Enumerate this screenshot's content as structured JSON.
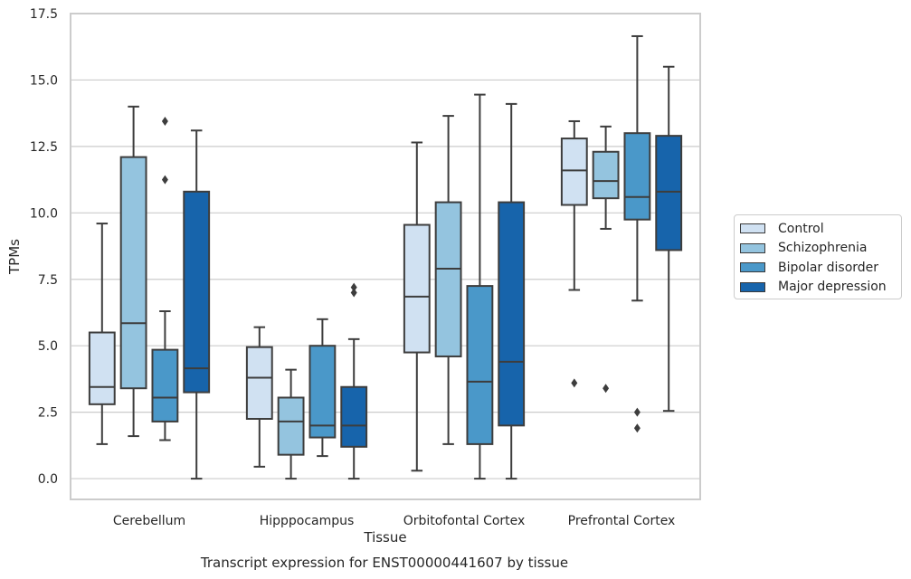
{
  "chart_data": {
    "type": "box",
    "title": "",
    "caption": "Transcript expression for ENST00000441607 by tissue",
    "xlabel": "Tissue",
    "ylabel": "TPMs",
    "ylim": [
      -0.78,
      17.5
    ],
    "yticks": [
      "0.0",
      "2.5",
      "5.0",
      "7.5",
      "10.0",
      "12.5",
      "15.0",
      "17.5"
    ],
    "ytick_values": [
      0,
      2.5,
      5,
      7.5,
      10,
      12.5,
      15,
      17.5
    ],
    "categories": [
      "Cerebellum",
      "Hipppocampus",
      "Orbitofontal Cortex",
      "Prefrontal Cortex"
    ],
    "grid": "horizontal",
    "legend_position": "outside-right",
    "series": [
      {
        "name": "Control",
        "color": "#d0e1f2",
        "boxes": [
          {
            "low": 1.3,
            "q1": 2.8,
            "median": 3.45,
            "q3": 5.5,
            "high": 9.6,
            "outliers": []
          },
          {
            "low": 0.45,
            "q1": 2.25,
            "median": 3.8,
            "q3": 4.95,
            "high": 5.7,
            "outliers": []
          },
          {
            "low": 0.3,
            "q1": 4.75,
            "median": 6.85,
            "q3": 9.55,
            "high": 12.65,
            "outliers": []
          },
          {
            "low": 7.1,
            "q1": 10.3,
            "median": 11.6,
            "q3": 12.8,
            "high": 13.45,
            "outliers": [
              3.6
            ]
          }
        ]
      },
      {
        "name": "Schizophrenia",
        "color": "#94c4df",
        "boxes": [
          {
            "low": 1.6,
            "q1": 3.4,
            "median": 5.85,
            "q3": 12.1,
            "high": 14.0,
            "outliers": []
          },
          {
            "low": 0.0,
            "q1": 0.9,
            "median": 2.15,
            "q3": 3.05,
            "high": 4.1,
            "outliers": []
          },
          {
            "low": 1.3,
            "q1": 4.6,
            "median": 7.9,
            "q3": 10.4,
            "high": 13.65,
            "outliers": []
          },
          {
            "low": 9.4,
            "q1": 10.55,
            "median": 11.2,
            "q3": 12.3,
            "high": 13.25,
            "outliers": [
              3.4
            ]
          }
        ]
      },
      {
        "name": "Bipolar disorder",
        "color": "#4a98c9",
        "boxes": [
          {
            "low": 1.45,
            "q1": 2.15,
            "median": 3.05,
            "q3": 4.85,
            "high": 6.3,
            "outliers": [
              11.25,
              13.45
            ]
          },
          {
            "low": 0.85,
            "q1": 1.55,
            "median": 2.0,
            "q3": 5.0,
            "high": 6.0,
            "outliers": []
          },
          {
            "low": 0.0,
            "q1": 1.3,
            "median": 3.65,
            "q3": 7.25,
            "high": 14.45,
            "outliers": []
          },
          {
            "low": 6.7,
            "q1": 9.75,
            "median": 10.6,
            "q3": 13.0,
            "high": 16.65,
            "outliers": [
              2.5,
              1.9
            ]
          }
        ]
      },
      {
        "name": "Major depression",
        "color": "#1764ab",
        "boxes": [
          {
            "low": 0.0,
            "q1": 3.25,
            "median": 4.15,
            "q3": 10.8,
            "high": 13.1,
            "outliers": []
          },
          {
            "low": 0.0,
            "q1": 1.2,
            "median": 2.0,
            "q3": 3.45,
            "high": 5.25,
            "outliers": [
              7.0,
              7.2
            ]
          },
          {
            "low": 0.0,
            "q1": 2.0,
            "median": 4.4,
            "q3": 10.4,
            "high": 14.1,
            "outliers": []
          },
          {
            "low": 2.55,
            "q1": 8.6,
            "median": 10.8,
            "q3": 12.9,
            "high": 15.5,
            "outliers": []
          }
        ]
      }
    ]
  }
}
